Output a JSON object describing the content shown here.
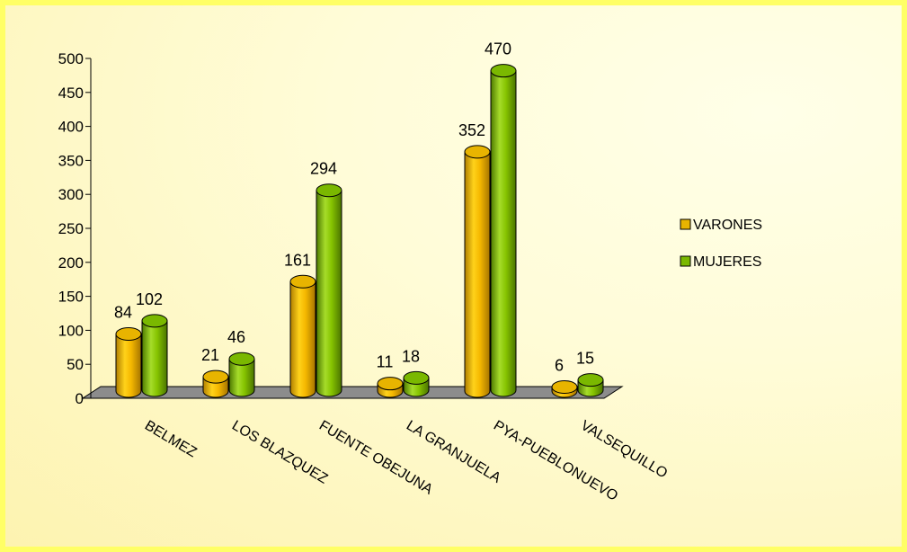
{
  "chart_data": {
    "type": "bar",
    "categories": [
      "BELMEZ",
      "LOS BLAZQUEZ",
      "FUENTE OBEJUNA",
      "LA GRANJUELA",
      "PYA-PUEBLONUEVO",
      "VALSEQUILLO"
    ],
    "series": [
      {
        "name": "VARONES",
        "values": [
          84,
          21,
          161,
          11,
          352,
          6
        ],
        "color": "#e8b400"
      },
      {
        "name": "MUJERES",
        "values": [
          102,
          46,
          294,
          18,
          470,
          15
        ],
        "color": "#7ab800"
      }
    ],
    "ylim": [
      0,
      500
    ],
    "yticks": [
      0,
      50,
      100,
      150,
      200,
      250,
      300,
      350,
      400,
      450,
      500
    ],
    "legend_position": "right",
    "grid": false
  }
}
